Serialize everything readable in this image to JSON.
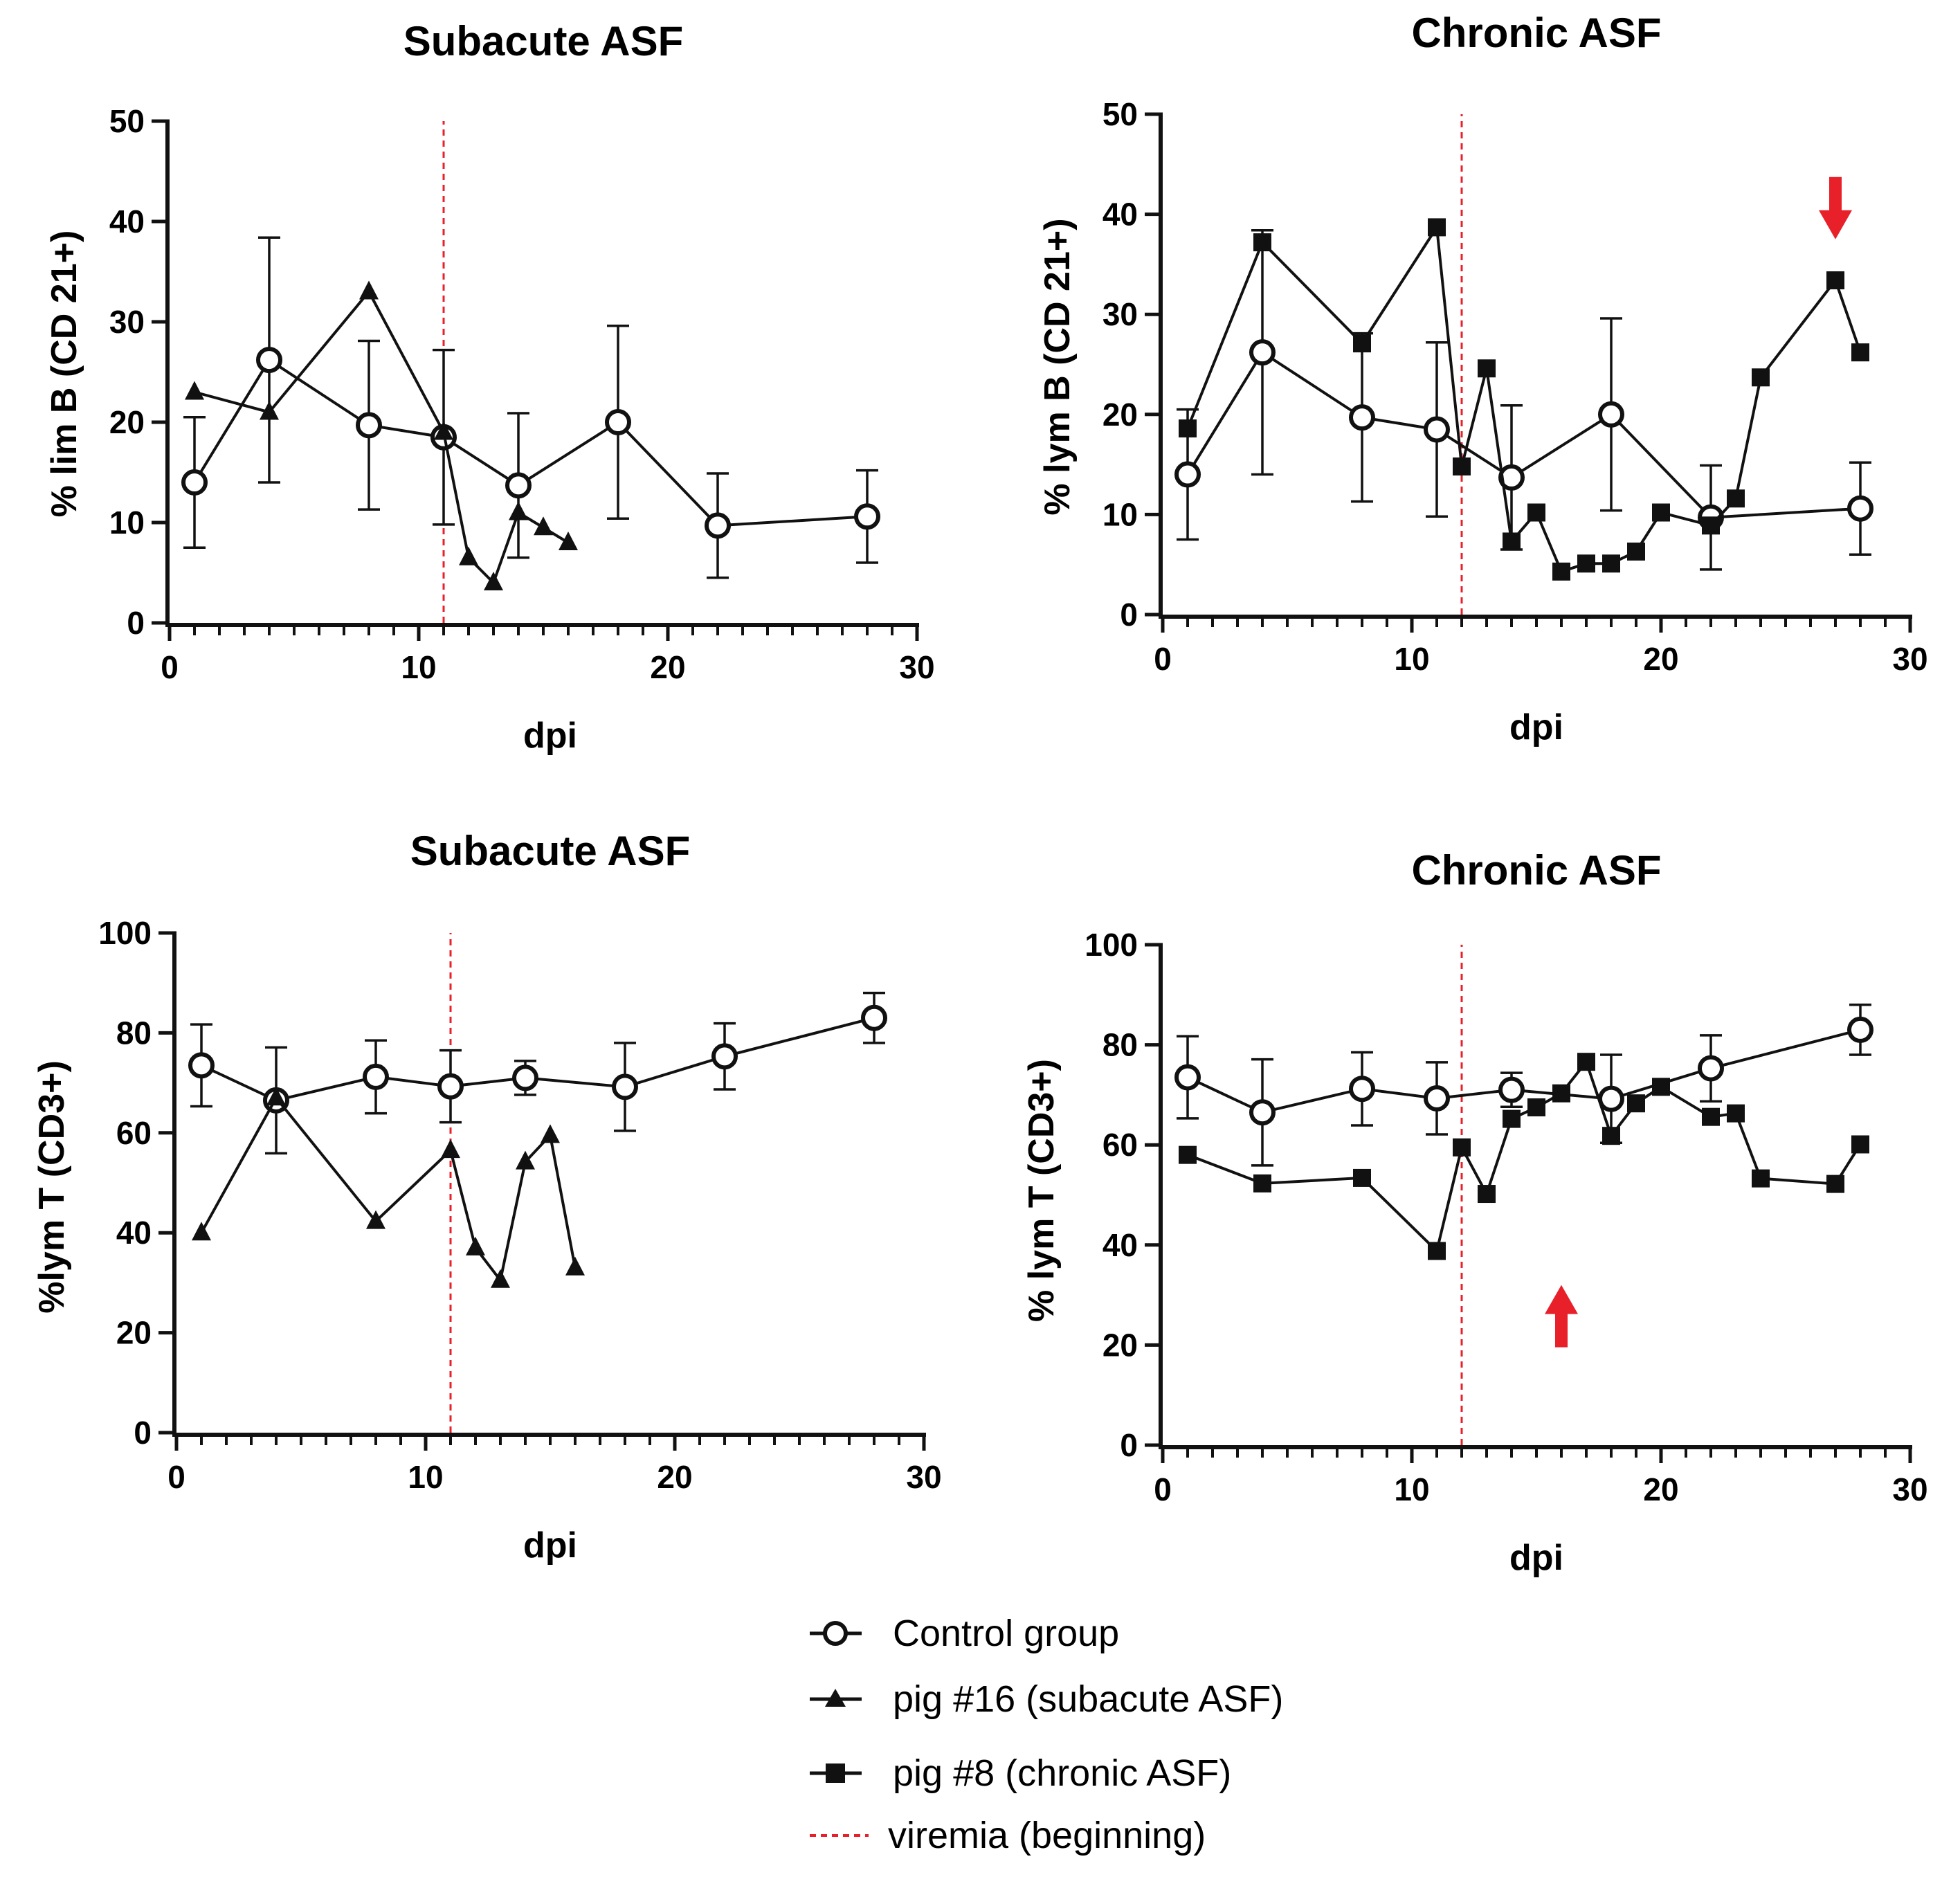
{
  "colors": {
    "ink": "#111111",
    "viremia": "#e8202a",
    "arrow": "#e8202a",
    "control_fill": "#ffffff"
  },
  "legend": {
    "items": [
      {
        "key": "control",
        "label": "Control group",
        "marker": "open-circle"
      },
      {
        "key": "pig16",
        "label": "pig #16 (subacute ASF)",
        "marker": "filled-triangle"
      },
      {
        "key": "pig8",
        "label": "pig #8 (chronic ASF)",
        "marker": "filled-square"
      },
      {
        "key": "viremia",
        "label": "viremia (beginning)",
        "marker": "red-dashed-line"
      }
    ]
  },
  "chart_data": [
    {
      "id": "p1",
      "type": "line",
      "title": "Subacute ASF",
      "xlabel": "dpi",
      "ylabel": "% lim B (CD 21+)",
      "xlim": [
        0,
        30
      ],
      "ylim": [
        0,
        50
      ],
      "xticks": [
        0,
        10,
        20,
        30
      ],
      "yticks": [
        0,
        10,
        20,
        30,
        40,
        50
      ],
      "viremia_start": 11,
      "series": [
        {
          "name": "Control group",
          "marker": "open-circle",
          "x": [
            1,
            4,
            8,
            11,
            14,
            18,
            22,
            28
          ],
          "y": [
            14,
            26.2,
            19.7,
            18.5,
            13.7,
            20,
            9.7,
            10.6
          ],
          "err": [
            6.5,
            12.2,
            8.4,
            8.7,
            7.2,
            9.6,
            5.2,
            4.6
          ]
        },
        {
          "name": "pig #16 (subacute ASF)",
          "marker": "filled-triangle",
          "x": [
            1,
            4,
            8,
            11,
            12,
            13,
            14,
            15,
            16
          ],
          "y": [
            23,
            21,
            33,
            19,
            6.5,
            4,
            11,
            9.5,
            8
          ]
        }
      ]
    },
    {
      "id": "p2",
      "type": "line",
      "title": "Chronic ASF",
      "xlabel": "dpi",
      "ylabel": "% lym B (CD 21+)",
      "xlim": [
        0,
        30
      ],
      "ylim": [
        0,
        50
      ],
      "xticks": [
        0,
        10,
        20,
        30
      ],
      "yticks": [
        0,
        10,
        20,
        30,
        40,
        50
      ],
      "viremia_start": 12,
      "annotations": [
        {
          "type": "arrow",
          "direction": "down",
          "x": 27,
          "y": 37.5
        }
      ],
      "series": [
        {
          "name": "Control group",
          "marker": "open-circle",
          "x": [
            1,
            4,
            8,
            11,
            14,
            18,
            22,
            28
          ],
          "y": [
            14,
            26.2,
            19.7,
            18.5,
            13.7,
            20,
            9.7,
            10.6
          ],
          "err": [
            6.5,
            12.2,
            8.4,
            8.7,
            7.2,
            9.6,
            5.2,
            4.6
          ]
        },
        {
          "name": "pig #8 (chronic ASF)",
          "marker": "filled-square",
          "x": [
            1,
            4,
            8,
            11,
            12,
            13,
            14,
            15,
            16,
            17,
            18,
            19,
            20,
            22,
            23,
            24,
            27,
            28
          ],
          "y": [
            18.6,
            37.2,
            27.1,
            38.7,
            14.8,
            24.6,
            7.3,
            10.2,
            4.3,
            5.1,
            5.1,
            6.3,
            10.2,
            8.9,
            11.6,
            23.7,
            33.4,
            26.2
          ]
        }
      ]
    },
    {
      "id": "p3",
      "type": "line",
      "title": "Subacute ASF",
      "xlabel": "dpi",
      "ylabel": "%lym T (CD3+)",
      "xlim": [
        0,
        30
      ],
      "ylim": [
        0,
        100
      ],
      "xticks": [
        0,
        10,
        20,
        30
      ],
      "yticks": [
        0,
        20,
        40,
        60,
        80,
        100
      ],
      "viremia_start": 11,
      "series": [
        {
          "name": "Control group",
          "marker": "open-circle",
          "x": [
            1,
            4,
            8,
            11,
            14,
            18,
            22,
            28
          ],
          "y": [
            73.5,
            66.5,
            71.2,
            69.3,
            71,
            69.2,
            75.3,
            83
          ],
          "err": [
            8.2,
            10.6,
            7.3,
            7.2,
            3.4,
            8.8,
            6.6,
            5
          ]
        },
        {
          "name": "pig #16 (subacute ASF)",
          "marker": "filled-triangle",
          "x": [
            1,
            4,
            8,
            11,
            12,
            13,
            14,
            15,
            16
          ],
          "y": [
            40,
            67,
            42.3,
            56.5,
            37,
            30.5,
            54.2,
            59.5,
            33
          ]
        }
      ]
    },
    {
      "id": "p4",
      "type": "line",
      "title": "Chronic ASF",
      "xlabel": "dpi",
      "ylabel": "% lym T (CD3+)",
      "xlim": [
        0,
        30
      ],
      "ylim": [
        0,
        100
      ],
      "xticks": [
        0,
        10,
        20,
        30
      ],
      "yticks": [
        0,
        20,
        40,
        60,
        80,
        100
      ],
      "viremia_start": 12,
      "annotations": [
        {
          "type": "arrow",
          "direction": "up",
          "x": 16,
          "y": 32
        }
      ],
      "series": [
        {
          "name": "Control group",
          "marker": "open-circle",
          "x": [
            1,
            4,
            8,
            11,
            14,
            18,
            22,
            28
          ],
          "y": [
            73.5,
            66.5,
            71.2,
            69.3,
            71,
            69.2,
            75.3,
            83
          ],
          "err": [
            8.2,
            10.6,
            7.3,
            7.2,
            3.4,
            8.8,
            6.6,
            5
          ]
        },
        {
          "name": "pig #8 (chronic ASF)",
          "marker": "filled-square",
          "x": [
            1,
            4,
            8,
            11,
            12,
            13,
            14,
            15,
            16,
            17,
            18,
            19,
            20,
            22,
            23,
            24,
            27,
            28
          ],
          "y": [
            58,
            52.3,
            53.4,
            38.8,
            59.5,
            50.2,
            65.2,
            67.5,
            70.3,
            76.6,
            61.8,
            68.3,
            71.6,
            65.6,
            66.3,
            53.3,
            52.2,
            60.1
          ]
        }
      ]
    }
  ]
}
